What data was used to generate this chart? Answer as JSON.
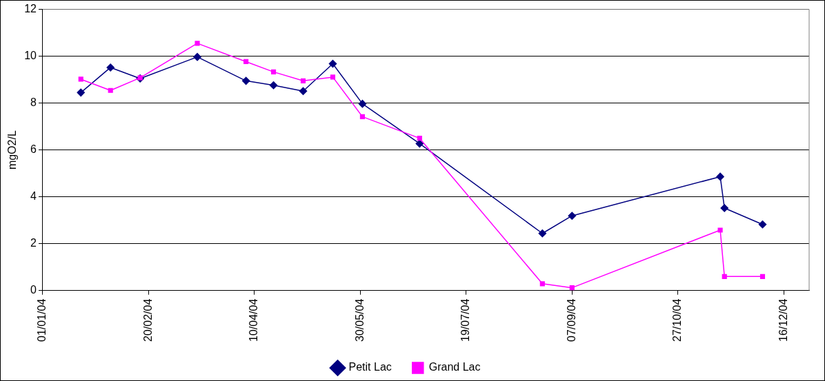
{
  "chart_data": {
    "type": "line",
    "ylabel": "mgO2/L",
    "xlim": [
      "2004-01-01",
      "2004-12-28"
    ],
    "xticks": [
      {
        "value": "2004-01-01",
        "label": "01/01/04"
      },
      {
        "value": "2004-02-20",
        "label": "20/02/04"
      },
      {
        "value": "2004-04-10",
        "label": "10/04/04"
      },
      {
        "value": "2004-05-30",
        "label": "30/05/04"
      },
      {
        "value": "2004-07-19",
        "label": "19/07/04"
      },
      {
        "value": "2004-09-07",
        "label": "07/09/04"
      },
      {
        "value": "2004-10-27",
        "label": "27/10/04"
      },
      {
        "value": "2004-12-16",
        "label": "16/12/04"
      }
    ],
    "ylim": [
      0,
      12
    ],
    "yticks": [
      0,
      2,
      4,
      6,
      8,
      10,
      12
    ],
    "grid": "y",
    "legend": "bottom",
    "series": [
      {
        "name": "Petit Lac",
        "color": "#000080",
        "marker": "diamond",
        "x": [
          "2004-01-19",
          "2004-02-02",
          "2004-02-16",
          "2004-03-14",
          "2004-04-06",
          "2004-04-19",
          "2004-05-03",
          "2004-05-17",
          "2004-05-31",
          "2004-06-27",
          "2004-08-24",
          "2004-09-07",
          "2004-11-16",
          "2004-11-18",
          "2004-12-06"
        ],
        "values": [
          8.45,
          9.52,
          9.05,
          9.97,
          8.95,
          8.76,
          8.51,
          9.68,
          7.97,
          6.27,
          2.44,
          3.19,
          4.86,
          3.52,
          2.82
        ]
      },
      {
        "name": "Grand Lac",
        "color": "#ff00ff",
        "marker": "square",
        "x": [
          "2004-01-19",
          "2004-02-02",
          "2004-02-16",
          "2004-03-14",
          "2004-04-06",
          "2004-04-19",
          "2004-05-03",
          "2004-05-17",
          "2004-05-31",
          "2004-06-27",
          "2004-08-24",
          "2004-09-07",
          "2004-11-16",
          "2004-11-18",
          "2004-12-06"
        ],
        "values": [
          9.02,
          8.54,
          9.08,
          10.55,
          9.77,
          9.33,
          8.95,
          9.11,
          7.42,
          6.5,
          0.29,
          0.12,
          2.58,
          0.6,
          0.6
        ]
      }
    ]
  }
}
